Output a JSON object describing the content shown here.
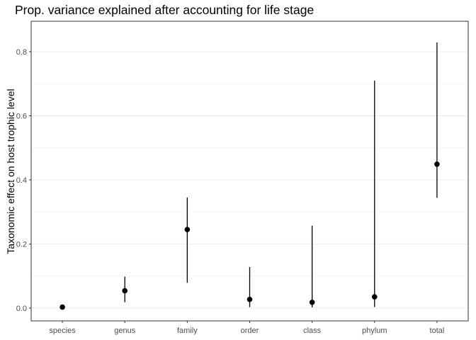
{
  "chart_data": {
    "type": "pointrange",
    "title": "Prop. variance explained after accounting for life stage",
    "xlabel": "",
    "ylabel": "Taxonomic effect on host trophic level",
    "categories": [
      "species",
      "genus",
      "family",
      "order",
      "class",
      "phylum",
      "total"
    ],
    "estimates": [
      0.003,
      0.054,
      0.245,
      0.027,
      0.018,
      0.035,
      0.449
    ],
    "lower": [
      0.001,
      0.018,
      0.079,
      0.003,
      0.002,
      0.003,
      0.344
    ],
    "upper": [
      0.005,
      0.098,
      0.345,
      0.128,
      0.257,
      0.71,
      0.829
    ],
    "ylim": [
      -0.04,
      0.895
    ],
    "yticks": [
      0.0,
      0.2,
      0.4,
      0.6,
      0.8
    ],
    "ytick_labels": [
      "0.0",
      "0.2",
      "0.4",
      "0.6",
      "0.8"
    ],
    "grid": "horizontal",
    "legend": "none",
    "colors": {
      "point": "#000000",
      "errorbar": "#000000",
      "grid": "#ebebeb",
      "panel_border": "#333333",
      "tick_text": "#4d4d4d"
    }
  }
}
